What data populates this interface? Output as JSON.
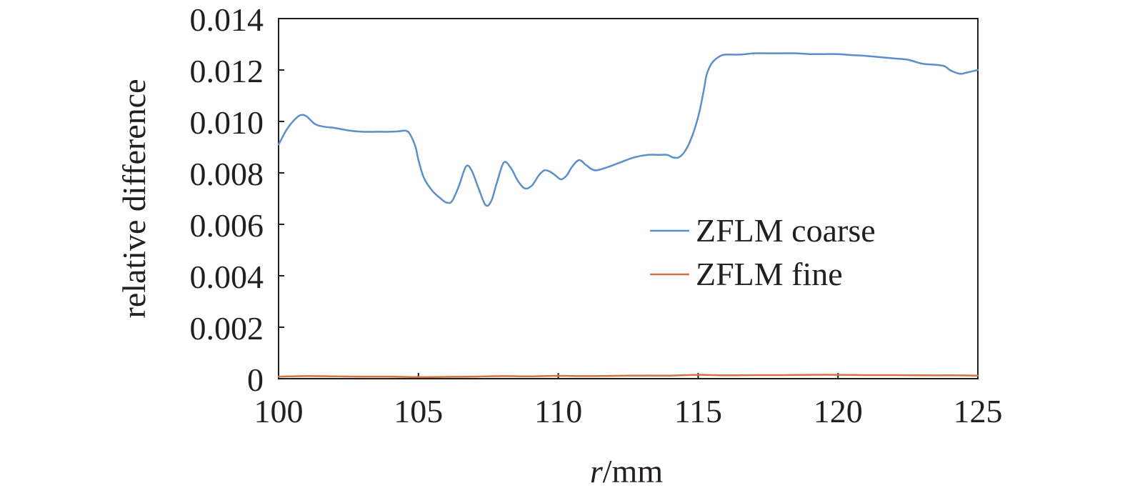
{
  "chart_data": {
    "type": "line",
    "title": "",
    "xlabel_italic": "r",
    "xlabel_rest": "/mm",
    "ylabel": "relative difference",
    "xlim": [
      100,
      125
    ],
    "ylim": [
      0,
      0.014
    ],
    "xticks": [
      100,
      105,
      110,
      115,
      120,
      125
    ],
    "xtick_labels": [
      "100",
      "105",
      "110",
      "115",
      "120",
      "125"
    ],
    "yticks": [
      0,
      0.002,
      0.004,
      0.006,
      0.008,
      0.01,
      0.012,
      0.014
    ],
    "ytick_labels": [
      "0",
      "0.002",
      "0.004",
      "0.006",
      "0.008",
      "0.010",
      "0.012",
      "0.014"
    ],
    "grid": false,
    "legend_position": "center-right",
    "series": [
      {
        "name": "ZFLM coarse",
        "color": "#5b8fcb",
        "x": [
          100,
          100.3,
          100.6,
          100.8,
          101.0,
          101.3,
          101.6,
          102.0,
          102.5,
          103.0,
          103.5,
          104.0,
          104.3,
          104.55,
          104.7,
          104.9,
          105.0,
          105.2,
          105.5,
          105.8,
          106.0,
          106.2,
          106.45,
          106.7,
          106.9,
          107.15,
          107.4,
          107.6,
          107.8,
          108.05,
          108.3,
          108.55,
          108.8,
          109.05,
          109.3,
          109.5,
          109.7,
          109.9,
          110.1,
          110.3,
          110.5,
          110.75,
          111.0,
          111.3,
          111.7,
          112.2,
          112.7,
          113.2,
          113.6,
          113.9,
          114.1,
          114.3,
          114.5,
          114.7,
          114.9,
          115.05,
          115.2,
          115.3,
          115.45,
          115.6,
          115.8,
          116.0,
          116.5,
          117.0,
          117.5,
          118.0,
          118.5,
          119.0,
          119.5,
          120.0,
          120.5,
          121.0,
          121.5,
          122.0,
          122.5,
          123.0,
          123.5,
          123.8,
          124.0,
          124.2,
          124.4,
          124.6,
          124.8,
          125.0
        ],
        "values": [
          0.0091,
          0.0097,
          0.0101,
          0.01025,
          0.0102,
          0.0099,
          0.0098,
          0.00975,
          0.00965,
          0.0096,
          0.0096,
          0.0096,
          0.00962,
          0.00964,
          0.0095,
          0.009,
          0.0085,
          0.0078,
          0.0073,
          0.007,
          0.00685,
          0.0069,
          0.0075,
          0.00825,
          0.0081,
          0.0074,
          0.00675,
          0.0069,
          0.0076,
          0.0084,
          0.0082,
          0.0077,
          0.0074,
          0.0075,
          0.0079,
          0.0081,
          0.00805,
          0.0079,
          0.00775,
          0.0079,
          0.00825,
          0.0085,
          0.0083,
          0.0081,
          0.0082,
          0.0084,
          0.0086,
          0.0087,
          0.0087,
          0.0087,
          0.0086,
          0.0086,
          0.0088,
          0.0092,
          0.0098,
          0.0104,
          0.0112,
          0.0118,
          0.0122,
          0.0124,
          0.01255,
          0.0126,
          0.0126,
          0.01265,
          0.01265,
          0.01265,
          0.01265,
          0.01262,
          0.01262,
          0.01262,
          0.01258,
          0.01255,
          0.0125,
          0.01245,
          0.0124,
          0.01225,
          0.0122,
          0.01215,
          0.012,
          0.0119,
          0.01185,
          0.0119,
          0.01195,
          0.012
        ]
      },
      {
        "name": "ZFLM fine",
        "color": "#d5723d",
        "x": [
          100,
          101,
          102,
          103,
          104,
          105,
          106,
          107,
          108,
          109,
          110,
          111,
          112,
          113,
          114,
          115,
          116,
          117,
          118,
          119,
          120,
          121,
          122,
          123,
          124,
          125
        ],
        "values": [
          8e-05,
          0.0001,
          9e-05,
          8e-05,
          8e-05,
          6e-05,
          7e-05,
          8e-05,
          0.0001,
          9e-05,
          0.00011,
          0.0001,
          0.00011,
          0.00012,
          0.00012,
          0.00015,
          0.00013,
          0.00014,
          0.00014,
          0.00015,
          0.00015,
          0.00014,
          0.00014,
          0.00013,
          0.00013,
          0.00012
        ]
      }
    ]
  }
}
